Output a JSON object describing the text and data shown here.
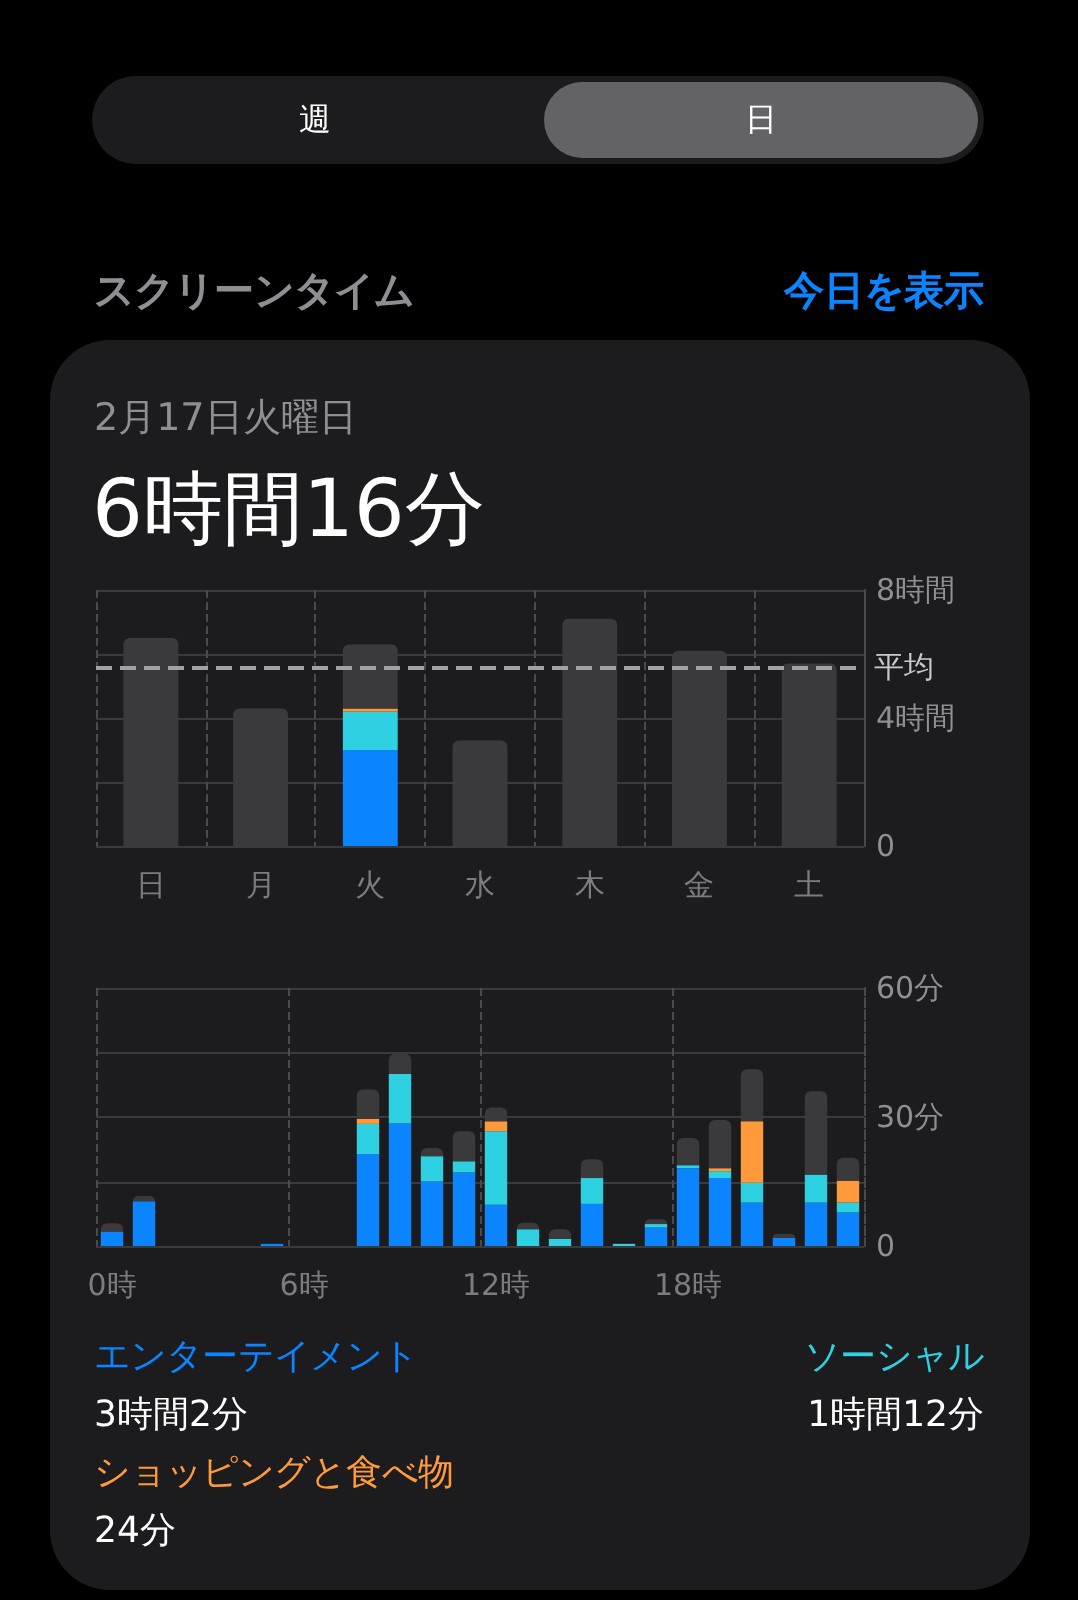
{
  "chart_data": [
    {
      "type": "bar",
      "title": "6時間16分",
      "subtitle": "2月17日火曜日",
      "annotations": [
        "週",
        "日",
        "スクリーンタイム",
        "今日を表示"
      ],
      "categories": [
        "日",
        "月",
        "火",
        "水",
        "木",
        "金",
        "土"
      ],
      "stacked": true,
      "series": [
        {
          "color": "#0a84ff",
          "values": [
            null,
            null,
            3.0,
            null,
            null,
            null,
            null
          ]
        },
        {
          "color": "#2fd0e2",
          "values": [
            null,
            null,
            1.2,
            null,
            null,
            null,
            null
          ]
        },
        {
          "color": "#ff9a3c",
          "values": [
            null,
            null,
            0.1,
            null,
            null,
            null,
            null
          ]
        },
        {
          "color": "#3a3a3c",
          "values": [
            6.5,
            4.3,
            2.0,
            3.3,
            7.1,
            6.1,
            5.7
          ]
        }
      ],
      "ylim": [
        0,
        8
      ],
      "yticks": [
        0,
        {
          "value": 2,
          "label": null
        },
        {
          "value": 4,
          "label": "4時間"
        },
        {
          "value": 6,
          "label": null
        },
        {
          "value": 8,
          "label": "8時間"
        }
      ],
      "grid": true,
      "ref_lines": [
        {
          "axis": "y",
          "value": 5.6,
          "label": "平均",
          "color": "#a1a1a6",
          "line_style": "dashed"
        }
      ]
    },
    {
      "type": "bar",
      "annotations": [
        "3時間2分",
        "1時間12分",
        "24分"
      ],
      "categories": [
        "0時",
        null,
        null,
        null,
        null,
        null,
        "6時",
        null,
        null,
        null,
        null,
        null,
        "12時",
        null,
        null,
        null,
        null,
        null,
        "18時",
        null,
        null,
        null,
        null,
        null
      ],
      "stacked": true,
      "series": [
        {
          "name": "エンターテイメント",
          "color": "#0a84ff",
          "values": [
            3.4,
            10.4,
            null,
            null,
            null,
            0.5,
            null,
            null,
            21.4,
            28.5,
            15.0,
            17.1,
            9.6,
            null,
            null,
            9.8,
            null,
            4.3,
            18.1,
            15.8,
            10.1,
            1.9,
            10.1,
            7.8
          ]
        },
        {
          "name": "ソーシャル",
          "color": "#2fd0e2",
          "values": [
            null,
            null,
            null,
            null,
            null,
            null,
            null,
            null,
            7.0,
            11.5,
            5.9,
            2.6,
            17.1,
            3.9,
            1.6,
            6.0,
            0.5,
            0.8,
            0.7,
            1.6,
            4.6,
            null,
            6.5,
            2.3
          ]
        },
        {
          "name": "ショッピングと食べ物",
          "color": "#ff9a3c",
          "values": [
            null,
            null,
            null,
            null,
            null,
            null,
            null,
            null,
            1.2,
            null,
            null,
            null,
            2.3,
            null,
            null,
            null,
            null,
            null,
            null,
            0.7,
            14.3,
            null,
            null,
            5.1
          ]
        },
        {
          "color": "#3a3a3c",
          "values": [
            1.9,
            1.2,
            null,
            null,
            null,
            null,
            null,
            null,
            6.8,
            4.7,
            1.9,
            7.0,
            3.2,
            1.5,
            2.3,
            4.4,
            null,
            1.1,
            6.3,
            11.2,
            12.1,
            0.9,
            19.4,
            5.3
          ]
        }
      ],
      "ylim": [
        0,
        60
      ],
      "yticks": [
        0,
        {
          "value": 15,
          "label": null
        },
        {
          "value": 30,
          "label": "30分"
        },
        {
          "value": 45,
          "label": null
        },
        {
          "value": 60,
          "label": "60分"
        }
      ],
      "grid": true,
      "legend": "bottom"
    }
  ]
}
